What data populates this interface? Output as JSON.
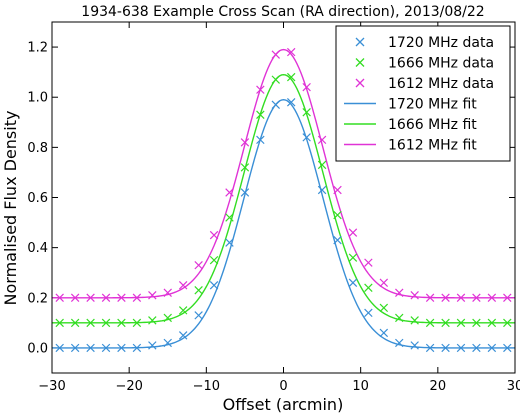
{
  "chart_data": {
    "type": "line",
    "title": "1934-638 Example Cross Scan (RA direction), 2013/08/22",
    "xlabel": "Offset (arcmin)",
    "ylabel": "Normalised Flux Density",
    "xlim": [
      -30,
      30
    ],
    "ylim": [
      -0.1,
      1.3
    ],
    "xticks": [
      -30,
      -20,
      -10,
      0,
      10,
      20,
      30
    ],
    "xtick_labels": [
      "−30",
      "−20",
      "−10",
      "0",
      "10",
      "20",
      "30"
    ],
    "yticks": [
      0.0,
      0.2,
      0.4,
      0.6,
      0.8,
      1.0,
      1.2
    ],
    "ytick_labels": [
      "0.0",
      "0.2",
      "0.4",
      "0.6",
      "0.8",
      "1.0",
      "1.2"
    ],
    "grid": false,
    "legend_position": "top-right",
    "x": [
      -29,
      -27,
      -25,
      -23,
      -21,
      -19,
      -17,
      -15,
      -13,
      -11,
      -9,
      -7,
      -5,
      -3,
      -1,
      1,
      3,
      5,
      7,
      9,
      11,
      13,
      15,
      17,
      19,
      21,
      23,
      25,
      27,
      29
    ],
    "series": [
      {
        "name": "1720 MHz data",
        "kind": "data",
        "marker": "x",
        "color": "#3a8fd6",
        "values": [
          0.0,
          0.0,
          0.0,
          0.0,
          0.0,
          0.0,
          0.01,
          0.02,
          0.05,
          0.13,
          0.25,
          0.42,
          0.62,
          0.83,
          0.97,
          0.98,
          0.84,
          0.63,
          0.43,
          0.26,
          0.14,
          0.06,
          0.02,
          0.01,
          0.0,
          0.0,
          0.0,
          0.0,
          0.0,
          0.0
        ]
      },
      {
        "name": "1666 MHz data",
        "kind": "data",
        "marker": "x",
        "color": "#33dd22",
        "values": [
          0.1,
          0.1,
          0.1,
          0.1,
          0.1,
          0.1,
          0.11,
          0.12,
          0.15,
          0.23,
          0.35,
          0.52,
          0.72,
          0.93,
          1.07,
          1.08,
          0.94,
          0.73,
          0.53,
          0.36,
          0.24,
          0.16,
          0.12,
          0.11,
          0.1,
          0.1,
          0.1,
          0.1,
          0.1,
          0.1
        ]
      },
      {
        "name": "1612 MHz data",
        "kind": "data",
        "marker": "x",
        "color": "#e033d6",
        "values": [
          0.2,
          0.2,
          0.2,
          0.2,
          0.2,
          0.2,
          0.21,
          0.22,
          0.25,
          0.33,
          0.45,
          0.62,
          0.82,
          1.03,
          1.17,
          1.18,
          1.04,
          0.83,
          0.63,
          0.46,
          0.34,
          0.26,
          0.22,
          0.21,
          0.2,
          0.2,
          0.2,
          0.2,
          0.2,
          0.2
        ]
      },
      {
        "name": "1720 MHz fit",
        "kind": "fit",
        "color": "#3a8fd6",
        "amplitude": 0.99,
        "baseline": 0.0,
        "center": 0.0,
        "fwhm": 12.0
      },
      {
        "name": "1666 MHz fit",
        "kind": "fit",
        "color": "#33dd22",
        "amplitude": 0.99,
        "baseline": 0.1,
        "center": 0.0,
        "fwhm": 12.0
      },
      {
        "name": "1612 MHz fit",
        "kind": "fit",
        "color": "#e033d6",
        "amplitude": 0.99,
        "baseline": 0.2,
        "center": 0.0,
        "fwhm": 12.0
      }
    ]
  }
}
